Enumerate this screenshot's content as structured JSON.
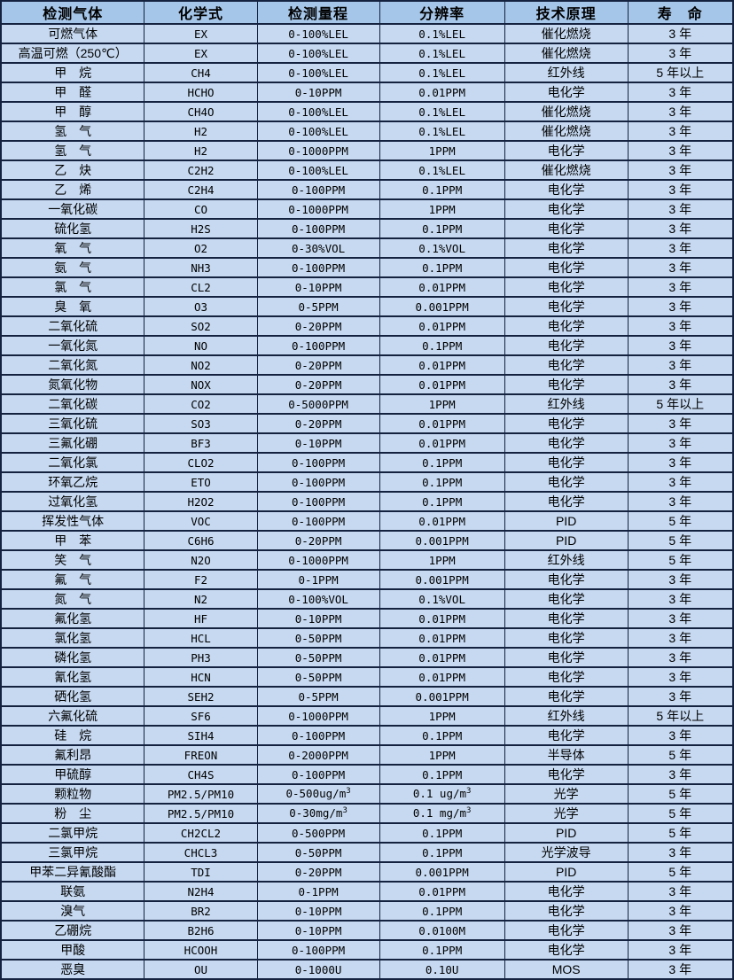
{
  "theme": {
    "header_bg": "#a5c6e9",
    "row_bg": "#c6d9f1",
    "border_color": "#14223f",
    "text_color": "#000000"
  },
  "table": {
    "columns": [
      "检测气体",
      "化学式",
      "检测量程",
      "分辨率",
      "技术原理",
      "寿　命"
    ],
    "rows": [
      [
        "可燃气体",
        "EX",
        "0-100%LEL",
        "0.1%LEL",
        "催化燃烧",
        "3 年"
      ],
      [
        "高温可燃（250℃）",
        "EX",
        "0-100%LEL",
        "0.1%LEL",
        "催化燃烧",
        "3 年"
      ],
      [
        "甲　烷",
        "CH4",
        "0-100%LEL",
        "0.1%LEL",
        "红外线",
        "5 年以上"
      ],
      [
        "甲　醛",
        "HCHO",
        "0-10PPM",
        "0.01PPM",
        "电化学",
        "3 年"
      ],
      [
        "甲　醇",
        "CH4O",
        "0-100%LEL",
        "0.1%LEL",
        "催化燃烧",
        "3 年"
      ],
      [
        "氢　气",
        "H2",
        "0-100%LEL",
        "0.1%LEL",
        "催化燃烧",
        "3 年"
      ],
      [
        "氢　气",
        "H2",
        "0-1000PPM",
        "1PPM",
        "电化学",
        "3 年"
      ],
      [
        "乙　炔",
        "C2H2",
        "0-100%LEL",
        "0.1%LEL",
        "催化燃烧",
        "3 年"
      ],
      [
        "乙　烯",
        "C2H4",
        "0-100PPM",
        "0.1PPM",
        "电化学",
        "3 年"
      ],
      [
        "一氧化碳",
        "CO",
        "0-1000PPM",
        "1PPM",
        "电化学",
        "3 年"
      ],
      [
        "硫化氢",
        "H2S",
        "0-100PPM",
        "0.1PPM",
        "电化学",
        "3 年"
      ],
      [
        "氧　气",
        "O2",
        "0-30%VOL",
        "0.1%VOL",
        "电化学",
        "3 年"
      ],
      [
        "氨　气",
        "NH3",
        "0-100PPM",
        "0.1PPM",
        "电化学",
        "3 年"
      ],
      [
        "氯　气",
        "CL2",
        "0-10PPM",
        "0.01PPM",
        "电化学",
        "3 年"
      ],
      [
        "臭　氧",
        "O3",
        "0-5PPM",
        "0.001PPM",
        "电化学",
        "3 年"
      ],
      [
        "二氧化硫",
        "SO2",
        "0-20PPM",
        "0.01PPM",
        "电化学",
        "3 年"
      ],
      [
        "一氧化氮",
        "NO",
        "0-100PPM",
        "0.1PPM",
        "电化学",
        "3 年"
      ],
      [
        "二氧化氮",
        "NO2",
        "0-20PPM",
        "0.01PPM",
        "电化学",
        "3 年"
      ],
      [
        "氮氧化物",
        "NOX",
        "0-20PPM",
        "0.01PPM",
        "电化学",
        "3 年"
      ],
      [
        "二氧化碳",
        "CO2",
        "0-5000PPM",
        "1PPM",
        "红外线",
        "5 年以上"
      ],
      [
        "三氧化硫",
        "SO3",
        "0-20PPM",
        "0.01PPM",
        "电化学",
        "3 年"
      ],
      [
        "三氟化硼",
        "BF3",
        "0-10PPM",
        "0.01PPM",
        "电化学",
        "3 年"
      ],
      [
        "二氧化氯",
        "CLO2",
        "0-100PPM",
        "0.1PPM",
        "电化学",
        "3 年"
      ],
      [
        "环氧乙烷",
        "ETO",
        "0-100PPM",
        "0.1PPM",
        "电化学",
        "3 年"
      ],
      [
        "过氧化氢",
        "H2O2",
        "0-100PPM",
        "0.1PPM",
        "电化学",
        "3 年"
      ],
      [
        "挥发性气体",
        "VOC",
        "0-100PPM",
        "0.01PPM",
        "PID",
        "5 年"
      ],
      [
        "甲　苯",
        "C6H6",
        "0-20PPM",
        "0.001PPM",
        "PID",
        "5 年"
      ],
      [
        "笑　气",
        "N2O",
        "0-1000PPM",
        "1PPM",
        "红外线",
        "5 年"
      ],
      [
        "氟　气",
        "F2",
        "0-1PPM",
        "0.001PPM",
        "电化学",
        "3 年"
      ],
      [
        "氮　气",
        "N2",
        "0-100%VOL",
        "0.1%VOL",
        "电化学",
        "3 年"
      ],
      [
        "氟化氢",
        "HF",
        "0-10PPM",
        "0.01PPM",
        "电化学",
        "3 年"
      ],
      [
        "氯化氢",
        "HCL",
        "0-50PPM",
        "0.01PPM",
        "电化学",
        "3 年"
      ],
      [
        "磷化氢",
        "PH3",
        "0-50PPM",
        "0.01PPM",
        "电化学",
        "3 年"
      ],
      [
        "氰化氢",
        "HCN",
        "0-50PPM",
        "0.01PPM",
        "电化学",
        "3 年"
      ],
      [
        "硒化氢",
        "SEH2",
        "0-5PPM",
        "0.001PPM",
        "电化学",
        "3 年"
      ],
      [
        "六氟化硫",
        "SF6",
        "0-1000PPM",
        "1PPM",
        "红外线",
        "5 年以上"
      ],
      [
        "硅　烷",
        "SIH4",
        "0-100PPM",
        "0.1PPM",
        "电化学",
        "3 年"
      ],
      [
        "氟利昂",
        "FREON",
        "0-2000PPM",
        "1PPM",
        "半导体",
        "5 年"
      ],
      [
        "甲硫醇",
        "CH4S",
        "0-100PPM",
        "0.1PPM",
        "电化学",
        "3 年"
      ],
      [
        "颗粒物",
        "PM2.5/PM10",
        "0-500ug/m³",
        "0.1 ug/m³",
        "光学",
        "5 年"
      ],
      [
        "粉　尘",
        "PM2.5/PM10",
        "0-30mg/m³",
        "0.1 mg/m³",
        "光学",
        "5 年"
      ],
      [
        "二氯甲烷",
        "CH2CL2",
        "0-500PPM",
        "0.1PPM",
        "PID",
        "5 年"
      ],
      [
        "三氯甲烷",
        "CHCL3",
        "0-50PPM",
        "0.1PPM",
        "光学波导",
        "3 年"
      ],
      [
        "甲苯二异氰酸酯",
        "TDI",
        "0-20PPM",
        "0.001PPM",
        "PID",
        "5 年"
      ],
      [
        "联氨",
        "N2H4",
        "0-1PPM",
        "0.01PPM",
        "电化学",
        "3 年"
      ],
      [
        "溴气",
        "BR2",
        "0-10PPM",
        "0.1PPM",
        "电化学",
        "3 年"
      ],
      [
        "乙硼烷",
        "B2H6",
        "0-10PPM",
        "0.0100M",
        "电化学",
        "3 年"
      ],
      [
        "甲酸",
        "HCOOH",
        "0-100PPM",
        "0.1PPM",
        "电化学",
        "3 年"
      ],
      [
        "恶臭",
        "OU",
        "0-1000U",
        "0.10U",
        "MOS",
        "3 年"
      ]
    ]
  }
}
